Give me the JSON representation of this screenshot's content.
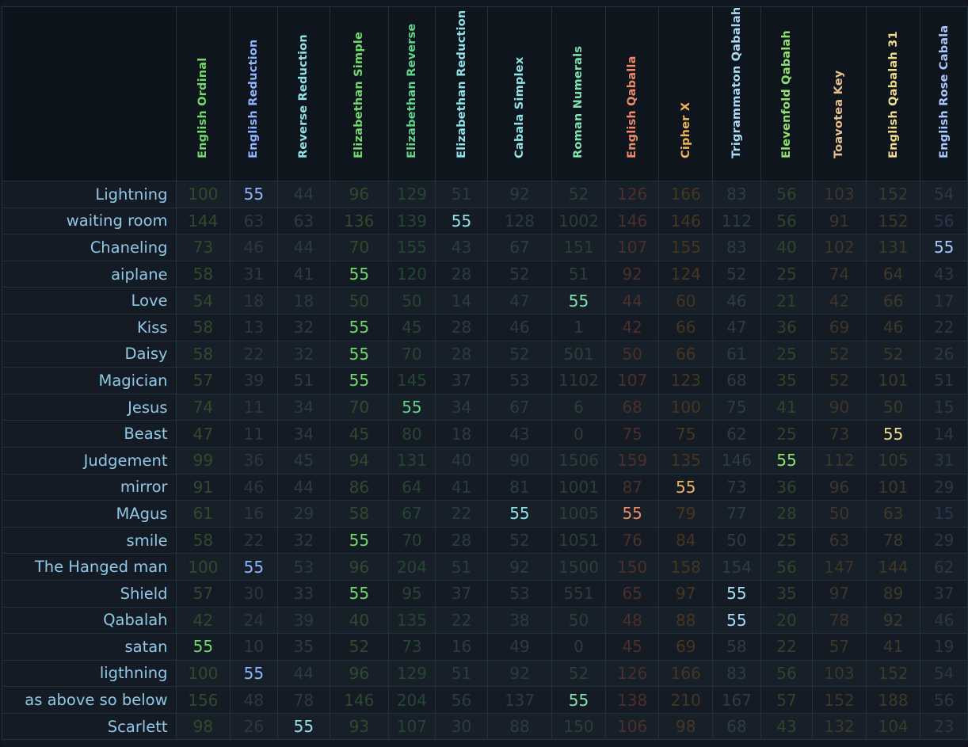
{
  "table": {
    "columns": [
      {
        "label": "English Ordinal",
        "color": "#6fdb6a",
        "dim": "#2f4a2c"
      },
      {
        "label": "English Reduction",
        "color": "#8fb4ff",
        "dim": "#2c3648"
      },
      {
        "label": "Reverse Reduction",
        "color": "#8ee2e8",
        "dim": "#2b3c40"
      },
      {
        "label": "Elizabethan Simple",
        "color": "#6fdb6a",
        "dim": "#2f4a2c"
      },
      {
        "label": "Elizabethan Reverse",
        "color": "#5fd48a",
        "dim": "#254633"
      },
      {
        "label": "Elizabethan Reduction",
        "color": "#8ee2e8",
        "dim": "#2b3c40"
      },
      {
        "label": "Cabala Simplex",
        "color": "#8ee2e8",
        "dim": "#2b3c40"
      },
      {
        "label": "Roman Numerals",
        "color": "#7fe3b3",
        "dim": "#2a3e3a"
      },
      {
        "label": "English Qaballa",
        "color": "#ef8a6a",
        "dim": "#4a2f2c"
      },
      {
        "label": "Cipher X",
        "color": "#f2b35a",
        "dim": "#463620"
      },
      {
        "label": "Trigrammaton Qabalah",
        "color": "#a8dcf5",
        "dim": "#2c3c46"
      },
      {
        "label": "Elevenfold Qabalah",
        "color": "#8fe36a",
        "dim": "#2e452b"
      },
      {
        "label": "Toavotea Key",
        "color": "#e8c08f",
        "dim": "#3e3628"
      },
      {
        "label": "English Qabalah 31",
        "color": "#f0db8a",
        "dim": "#3e3a28"
      },
      {
        "label": "English Rose Cabala",
        "color": "#a8c9ff",
        "dim": "#2c3648"
      }
    ],
    "rows": [
      {
        "word": "Lightning",
        "values": [
          "100",
          "55",
          "44",
          "96",
          "129",
          "51",
          "92",
          "52",
          "126",
          "166",
          "83",
          "56",
          "103",
          "152",
          "54"
        ]
      },
      {
        "word": "waiting room",
        "values": [
          "144",
          "63",
          "63",
          "136",
          "139",
          "55",
          "128",
          "1002",
          "146",
          "146",
          "112",
          "56",
          "91",
          "152",
          "56"
        ]
      },
      {
        "word": "Chaneling",
        "values": [
          "73",
          "46",
          "44",
          "70",
          "155",
          "43",
          "67",
          "151",
          "107",
          "155",
          "83",
          "40",
          "102",
          "131",
          "55"
        ]
      },
      {
        "word": "aiplane",
        "values": [
          "58",
          "31",
          "41",
          "55",
          "120",
          "28",
          "52",
          "51",
          "92",
          "124",
          "52",
          "25",
          "74",
          "64",
          "43"
        ]
      },
      {
        "word": "Love",
        "values": [
          "54",
          "18",
          "18",
          "50",
          "50",
          "14",
          "47",
          "55",
          "44",
          "60",
          "46",
          "21",
          "42",
          "66",
          "17"
        ]
      },
      {
        "word": "Kiss",
        "values": [
          "58",
          "13",
          "32",
          "55",
          "45",
          "28",
          "46",
          "1",
          "42",
          "66",
          "47",
          "36",
          "69",
          "46",
          "22"
        ]
      },
      {
        "word": "Daisy",
        "values": [
          "58",
          "22",
          "32",
          "55",
          "70",
          "28",
          "52",
          "501",
          "50",
          "66",
          "61",
          "25",
          "52",
          "52",
          "26"
        ]
      },
      {
        "word": "Magician",
        "values": [
          "57",
          "39",
          "51",
          "55",
          "145",
          "37",
          "53",
          "1102",
          "107",
          "123",
          "68",
          "35",
          "52",
          "101",
          "51"
        ]
      },
      {
        "word": "Jesus",
        "values": [
          "74",
          "11",
          "34",
          "70",
          "55",
          "34",
          "67",
          "6",
          "68",
          "100",
          "75",
          "41",
          "90",
          "50",
          "15"
        ]
      },
      {
        "word": "Beast",
        "values": [
          "47",
          "11",
          "34",
          "45",
          "80",
          "18",
          "43",
          "0",
          "75",
          "75",
          "62",
          "25",
          "73",
          "55",
          "14"
        ]
      },
      {
        "word": "Judgement",
        "values": [
          "99",
          "36",
          "45",
          "94",
          "131",
          "40",
          "90",
          "1506",
          "159",
          "135",
          "146",
          "55",
          "112",
          "105",
          "31"
        ]
      },
      {
        "word": "mirror",
        "values": [
          "91",
          "46",
          "44",
          "86",
          "64",
          "41",
          "81",
          "1001",
          "87",
          "55",
          "73",
          "36",
          "96",
          "101",
          "29"
        ]
      },
      {
        "word": "MAgus",
        "values": [
          "61",
          "16",
          "29",
          "58",
          "67",
          "22",
          "55",
          "1005",
          "55",
          "79",
          "77",
          "28",
          "50",
          "63",
          "15"
        ]
      },
      {
        "word": "smile",
        "values": [
          "58",
          "22",
          "32",
          "55",
          "70",
          "28",
          "52",
          "1051",
          "76",
          "84",
          "50",
          "25",
          "63",
          "78",
          "29"
        ]
      },
      {
        "word": "The Hanged man",
        "values": [
          "100",
          "55",
          "53",
          "96",
          "204",
          "51",
          "92",
          "1500",
          "150",
          "158",
          "154",
          "56",
          "147",
          "144",
          "62"
        ]
      },
      {
        "word": "Shield",
        "values": [
          "57",
          "30",
          "33",
          "55",
          "95",
          "37",
          "53",
          "551",
          "65",
          "97",
          "55",
          "35",
          "97",
          "89",
          "37"
        ]
      },
      {
        "word": "Qabalah",
        "values": [
          "42",
          "24",
          "39",
          "40",
          "135",
          "22",
          "38",
          "50",
          "48",
          "88",
          "55",
          "20",
          "78",
          "92",
          "46"
        ]
      },
      {
        "word": "satan",
        "values": [
          "55",
          "10",
          "35",
          "52",
          "73",
          "16",
          "49",
          "0",
          "45",
          "69",
          "58",
          "22",
          "57",
          "41",
          "19"
        ]
      },
      {
        "word": "ligthning",
        "values": [
          "100",
          "55",
          "44",
          "96",
          "129",
          "51",
          "92",
          "52",
          "126",
          "166",
          "83",
          "56",
          "103",
          "152",
          "54"
        ]
      },
      {
        "word": "as above so below",
        "values": [
          "156",
          "48",
          "78",
          "146",
          "204",
          "56",
          "137",
          "55",
          "138",
          "210",
          "167",
          "57",
          "152",
          "188",
          "56"
        ]
      },
      {
        "word": "Scarlett",
        "values": [
          "98",
          "26",
          "55",
          "93",
          "107",
          "30",
          "88",
          "150",
          "106",
          "98",
          "68",
          "43",
          "132",
          "104",
          "23"
        ]
      }
    ],
    "highlight_value": "55"
  }
}
